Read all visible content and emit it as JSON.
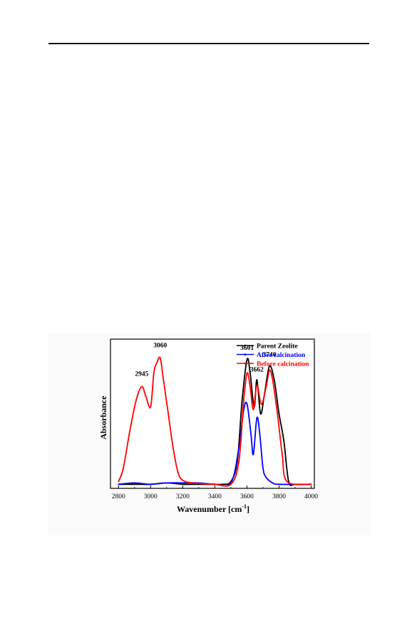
{
  "page": {
    "background": "#ffffff"
  },
  "chart_data": {
    "type": "line",
    "title": "",
    "xlabel": "Wavenumber [cm⁻¹]",
    "xlabel_parts": {
      "base": "Wavenumber [cm",
      "sup": "-1",
      "close": "]"
    },
    "ylabel": "Absorbance",
    "xlim": [
      2750,
      4020
    ],
    "ylim": [
      0,
      1.1
    ],
    "xticks": [
      2800,
      3000,
      3200,
      3400,
      3600,
      3800,
      4000
    ],
    "xtick_labels": [
      "2800",
      "3000",
      "3200",
      "3400",
      "3600",
      "3800",
      "4000"
    ],
    "yticks_visible": false,
    "grid": false,
    "legend_position": "top-right",
    "series": [
      {
        "name": "Parent Zeolite",
        "color": "#000000",
        "x": [
          2800,
          2900,
          3000,
          3100,
          3200,
          3300,
          3400,
          3450,
          3500,
          3540,
          3570,
          3601,
          3620,
          3645,
          3662,
          3685,
          3710,
          3740,
          3770,
          3800,
          3830,
          3860,
          3900,
          4000
        ],
        "y": [
          0.03,
          0.03,
          0.03,
          0.04,
          0.03,
          0.03,
          0.03,
          0.03,
          0.05,
          0.2,
          0.65,
          0.95,
          0.85,
          0.6,
          0.8,
          0.55,
          0.7,
          0.9,
          0.8,
          0.55,
          0.35,
          0.05,
          0.03,
          0.03
        ]
      },
      {
        "name": "After calcination",
        "color": "#0000ff",
        "x": [
          2800,
          2900,
          3000,
          3100,
          3200,
          3300,
          3400,
          3500,
          3550,
          3580,
          3601,
          3625,
          3640,
          3662,
          3680,
          3700,
          3720,
          3760,
          3800,
          4000
        ],
        "y": [
          0.03,
          0.04,
          0.03,
          0.04,
          0.04,
          0.04,
          0.03,
          0.04,
          0.3,
          0.58,
          0.62,
          0.4,
          0.25,
          0.52,
          0.4,
          0.15,
          0.08,
          0.04,
          0.03,
          0.03
        ]
      },
      {
        "name": "Before calcination",
        "color": "#ff0000",
        "x": [
          2800,
          2830,
          2870,
          2910,
          2945,
          2970,
          3000,
          3020,
          3040,
          3060,
          3080,
          3110,
          3140,
          3170,
          3200,
          3260,
          3400,
          3500,
          3550,
          3580,
          3601,
          3620,
          3640,
          3662,
          3690,
          3720,
          3740,
          3760,
          3790,
          3820,
          3850,
          4000
        ],
        "y": [
          0.05,
          0.15,
          0.42,
          0.65,
          0.75,
          0.68,
          0.6,
          0.85,
          0.93,
          0.96,
          0.8,
          0.55,
          0.3,
          0.12,
          0.06,
          0.04,
          0.03,
          0.03,
          0.2,
          0.65,
          0.85,
          0.75,
          0.58,
          0.76,
          0.62,
          0.75,
          0.87,
          0.8,
          0.55,
          0.25,
          0.05,
          0.03
        ]
      }
    ],
    "annotations": [
      {
        "text": "2945",
        "x": 2945,
        "y": 0.83
      },
      {
        "text": "3060",
        "x": 3060,
        "y": 1.04
      },
      {
        "text": "3601",
        "x": 3601,
        "y": 1.02
      },
      {
        "text": "3662",
        "x": 3662,
        "y": 0.86
      },
      {
        "text": "3740",
        "x": 3740,
        "y": 0.97
      }
    ]
  }
}
